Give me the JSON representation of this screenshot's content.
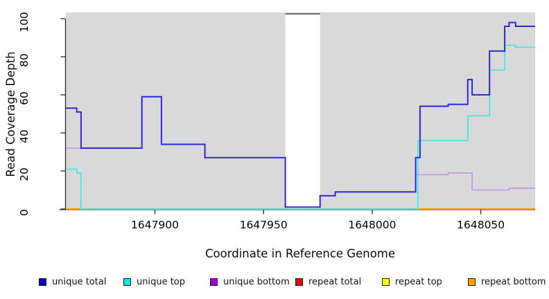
{
  "chart_data": {
    "type": "line",
    "subtype": "step",
    "title": "",
    "xlabel": "Coordinate in Reference Genome",
    "ylabel": "Read Coverage Depth",
    "xlim": [
      1647859,
      1648075
    ],
    "ylim": [
      0,
      100
    ],
    "x_ticks": [
      1647900,
      1647950,
      1648000,
      1648050
    ],
    "y_ticks": [
      0,
      20,
      40,
      60,
      80,
      100
    ],
    "grid": false,
    "plot_bg": "#d9d9d9",
    "gap_region": {
      "x0": 1647960,
      "x1": 1647976,
      "fill": "#ffffff",
      "top_border": "#6e6e6e"
    },
    "series": [
      {
        "name": "repeat total",
        "color": "#e00000",
        "width": 1.4,
        "x_end": 1648075,
        "points": [
          [
            1647859,
            0
          ]
        ]
      },
      {
        "name": "repeat top",
        "color": "#ffff00",
        "width": 1.4,
        "x_end": 1648075,
        "points": [
          [
            1647859,
            0
          ]
        ]
      },
      {
        "name": "repeat bottom",
        "color": "#ff9000",
        "width": 1.6,
        "x_end": 1648075,
        "points": [
          [
            1647859,
            0
          ]
        ]
      },
      {
        "name": "zero overlap blend (unique top & repeat lines at 0)",
        "color": "#90db90",
        "width": 1.6,
        "x_end": 1648021,
        "visual_blend": true,
        "points": [
          [
            1647866,
            0
          ]
        ]
      },
      {
        "name": "unique bottom",
        "color": "#bd93e2",
        "width": 1.6,
        "x_end": 1648075,
        "points": [
          [
            1647859,
            32
          ],
          [
            1647894,
            59
          ],
          [
            1647903,
            34
          ],
          [
            1647923,
            27
          ],
          [
            1647960,
            1
          ],
          [
            1647976,
            7
          ],
          [
            1647983,
            9
          ],
          [
            1648020,
            18
          ],
          [
            1648035,
            19
          ],
          [
            1648046,
            10
          ],
          [
            1648063,
            11
          ]
        ]
      },
      {
        "name": "unique top",
        "color": "#45dfe8",
        "width": 1.6,
        "x_end": 1648075,
        "points": [
          [
            1647859,
            21
          ],
          [
            1647864,
            19
          ],
          [
            1647866,
            0
          ],
          [
            1648021,
            36
          ],
          [
            1648044,
            49
          ],
          [
            1648054,
            73
          ],
          [
            1648061,
            86
          ],
          [
            1648066,
            85
          ]
        ]
      },
      {
        "name": "unique total",
        "color": "#2d28e0",
        "width": 2.0,
        "x_end": 1648075,
        "points": [
          [
            1647859,
            53
          ],
          [
            1647864,
            51
          ],
          [
            1647866,
            32
          ],
          [
            1647894,
            59
          ],
          [
            1647903,
            34
          ],
          [
            1647923,
            27
          ],
          [
            1647960,
            1
          ],
          [
            1647976,
            7
          ],
          [
            1647983,
            9
          ],
          [
            1648020,
            27
          ],
          [
            1648022,
            54
          ],
          [
            1648035,
            55
          ],
          [
            1648044,
            68
          ],
          [
            1648046,
            60
          ],
          [
            1648054,
            83
          ],
          [
            1648061,
            96
          ],
          [
            1648063,
            98
          ],
          [
            1648066,
            96
          ]
        ]
      }
    ],
    "legend": [
      {
        "label": "unique total",
        "color": "#0000d0"
      },
      {
        "label": "unique top",
        "color": "#00e8f0"
      },
      {
        "label": "unique bottom",
        "color": "#9c00d0"
      },
      {
        "label": "repeat total",
        "color": "#ee0000"
      },
      {
        "label": "repeat top",
        "color": "#ffff00"
      },
      {
        "label": "repeat bottom",
        "color": "#ffa000"
      }
    ],
    "legend_position": "bottom",
    "axis_color": "#262626"
  }
}
